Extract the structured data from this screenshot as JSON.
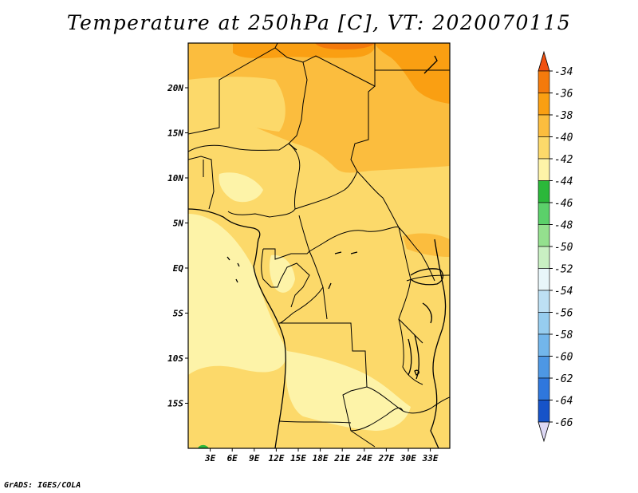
{
  "title": "Temperature at 250hPa [C], VT: 2020070115",
  "credit": "GrADS: IGES/COLA",
  "map": {
    "lat_labels": [
      "20N",
      "15N",
      "10N",
      "5N",
      "EQ",
      "5S",
      "10S",
      "15S"
    ],
    "lon_labels": [
      "3E",
      "6E",
      "9E",
      "12E",
      "15E",
      "18E",
      "21E",
      "24E",
      "27E",
      "30E",
      "33E"
    ],
    "extent": {
      "lon": [
        0,
        35
      ],
      "lat": [
        -20,
        25
      ]
    }
  },
  "colorbar": {
    "labels": [
      "-34",
      "-36",
      "-38",
      "-40",
      "-42",
      "-44",
      "-46",
      "-48",
      "-50",
      "-52",
      "-54",
      "-56",
      "-58",
      "-60",
      "-62",
      "-64",
      "-66"
    ],
    "colors": {
      "top_arrow": "#f05010",
      "bands": [
        "#f47a0c",
        "#fa9f12",
        "#fbbd3e",
        "#fcd96a",
        "#fdf3a8",
        "#2bb83a",
        "#5bd06a",
        "#94e08e",
        "#c9f0c3",
        "#e8f6fa",
        "#bde0f4",
        "#96cdef",
        "#72b6eb",
        "#4d97e4",
        "#2f77dd",
        "#1753c8"
      ],
      "bottom_arrow": "#ddd8f4"
    }
  }
}
